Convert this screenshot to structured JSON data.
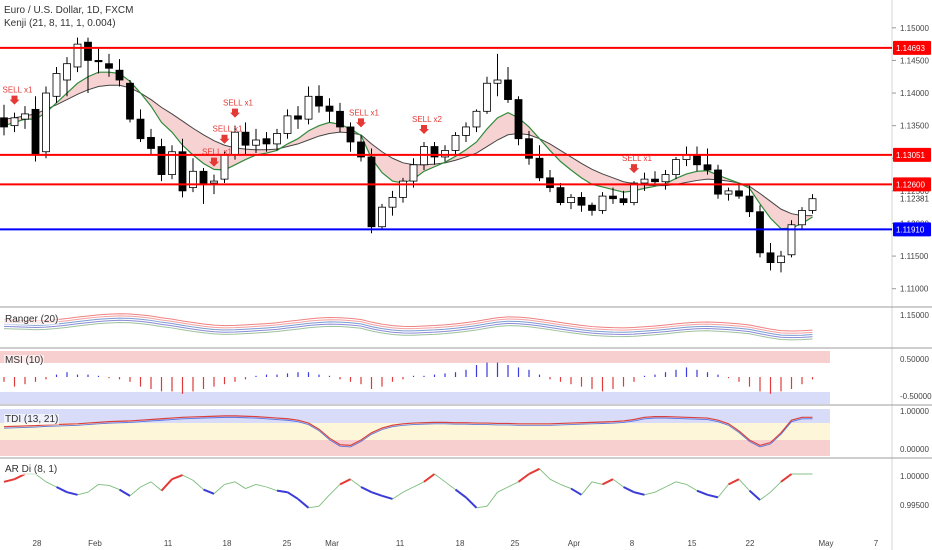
{
  "header": {
    "symbol_line": "Euro / U.S. Dollar, 1D, FXCM",
    "indicator_line": "Kenji (21, 8, 11, 1, 0.004)"
  },
  "panes": {
    "ranger": "Ranger (20)",
    "msi": "MSI (10)",
    "tdi": "TDI (13, 21)",
    "ardi": "AR Di (8, 1)"
  },
  "colors": {
    "up_candle": "#ffffff",
    "down_candle": "#000000",
    "resistance": "#ff0000",
    "support": "#0000ff",
    "kenji_fill": "#f4c7c7",
    "kenji_fast": "#2e8b3a",
    "kenji_slow": "#444444",
    "sell_signal": "#e53935"
  },
  "chart_data": {
    "type": "candlestick",
    "x_axis": {
      "tick_labels": [
        "28",
        "Feb",
        "11",
        "18",
        "25",
        "Mar",
        "11",
        "18",
        "25",
        "Apr",
        "8",
        "15",
        "22",
        "May",
        "7"
      ]
    },
    "y_axis": {
      "ylim": [
        1.1075,
        1.1535
      ],
      "tick_labels": [
        "1.15000",
        "1.14500",
        "1.14000",
        "1.13500",
        "1.13000",
        "1.12500",
        "1.12000",
        "1.11500",
        "1.11000"
      ]
    },
    "horizontal_levels": [
      {
        "label": "1.14693",
        "value": 1.14693,
        "color": "#ff0000"
      },
      {
        "label": "1.13051",
        "value": 1.13051,
        "color": "#ff0000"
      },
      {
        "label": "1.12600",
        "value": 1.126,
        "color": "#ff0000"
      },
      {
        "label": "1.11910",
        "value": 1.1191,
        "color": "#0000ff"
      }
    ],
    "last_price_label": "1.12381",
    "candles": [
      [
        1.1362,
        1.1382,
        1.1335,
        1.1348
      ],
      [
        1.135,
        1.137,
        1.134,
        1.1362
      ],
      [
        1.136,
        1.138,
        1.1345,
        1.1368
      ],
      [
        1.1375,
        1.1395,
        1.1295,
        1.1305
      ],
      [
        1.131,
        1.141,
        1.13,
        1.14
      ],
      [
        1.1395,
        1.144,
        1.1385,
        1.143
      ],
      [
        1.142,
        1.1455,
        1.1395,
        1.1445
      ],
      [
        1.144,
        1.1485,
        1.1432,
        1.1475
      ],
      [
        1.1478,
        1.1485,
        1.14,
        1.145
      ],
      [
        1.145,
        1.1468,
        1.143,
        1.1448
      ],
      [
        1.1445,
        1.146,
        1.1425,
        1.1438
      ],
      [
        1.1435,
        1.1452,
        1.141,
        1.142
      ],
      [
        1.1415,
        1.142,
        1.1355,
        1.136
      ],
      [
        1.136,
        1.1375,
        1.1325,
        1.133
      ],
      [
        1.1332,
        1.1345,
        1.1305,
        1.1315
      ],
      [
        1.1318,
        1.133,
        1.1265,
        1.1275
      ],
      [
        1.1275,
        1.132,
        1.1268,
        1.131
      ],
      [
        1.131,
        1.133,
        1.124,
        1.125
      ],
      [
        1.1255,
        1.13,
        1.1248,
        1.128
      ],
      [
        1.128,
        1.1285,
        1.123,
        1.126
      ],
      [
        1.1262,
        1.1275,
        1.1245,
        1.1265
      ],
      [
        1.1268,
        1.131,
        1.1262,
        1.1305
      ],
      [
        1.1305,
        1.135,
        1.1298,
        1.134
      ],
      [
        1.134,
        1.1355,
        1.1305,
        1.132
      ],
      [
        1.132,
        1.1345,
        1.1308,
        1.1328
      ],
      [
        1.133,
        1.134,
        1.131,
        1.1322
      ],
      [
        1.1322,
        1.1345,
        1.1312,
        1.1338
      ],
      [
        1.1338,
        1.1375,
        1.133,
        1.1365
      ],
      [
        1.1365,
        1.138,
        1.1345,
        1.136
      ],
      [
        1.136,
        1.141,
        1.1352,
        1.1395
      ],
      [
        1.1395,
        1.1412,
        1.137,
        1.138
      ],
      [
        1.138,
        1.1392,
        1.1355,
        1.1372
      ],
      [
        1.1372,
        1.1385,
        1.134,
        1.1348
      ],
      [
        1.1348,
        1.1355,
        1.131,
        1.1325
      ],
      [
        1.1325,
        1.1335,
        1.1295,
        1.1302
      ],
      [
        1.1302,
        1.1315,
        1.1185,
        1.1195
      ],
      [
        1.1195,
        1.123,
        1.119,
        1.1225
      ],
      [
        1.1225,
        1.125,
        1.1212,
        1.124
      ],
      [
        1.124,
        1.127,
        1.1232,
        1.1265
      ],
      [
        1.1265,
        1.13,
        1.1255,
        1.129
      ],
      [
        1.129,
        1.1325,
        1.1282,
        1.1318
      ],
      [
        1.1318,
        1.1325,
        1.129,
        1.1302
      ],
      [
        1.1302,
        1.132,
        1.1295,
        1.1312
      ],
      [
        1.1312,
        1.134,
        1.1305,
        1.1335
      ],
      [
        1.1335,
        1.1355,
        1.1325,
        1.1348
      ],
      [
        1.1348,
        1.1375,
        1.134,
        1.1372
      ],
      [
        1.1372,
        1.1425,
        1.1368,
        1.1415
      ],
      [
        1.1415,
        1.146,
        1.1395,
        1.142
      ],
      [
        1.142,
        1.144,
        1.1385,
        1.139
      ],
      [
        1.139,
        1.1395,
        1.132,
        1.133
      ],
      [
        1.133,
        1.1342,
        1.129,
        1.13
      ],
      [
        1.13,
        1.132,
        1.1265,
        1.127
      ],
      [
        1.127,
        1.1282,
        1.1248,
        1.1255
      ],
      [
        1.1255,
        1.1262,
        1.1228,
        1.1232
      ],
      [
        1.1232,
        1.1245,
        1.1222,
        1.124
      ],
      [
        1.124,
        1.1248,
        1.1218,
        1.1228
      ],
      [
        1.1228,
        1.1232,
        1.1212,
        1.122
      ],
      [
        1.122,
        1.1248,
        1.1215,
        1.1242
      ],
      [
        1.1242,
        1.1255,
        1.123,
        1.1238
      ],
      [
        1.1238,
        1.125,
        1.1228,
        1.1232
      ],
      [
        1.1232,
        1.1265,
        1.1228,
        1.1262
      ],
      [
        1.1262,
        1.1278,
        1.125,
        1.1268
      ],
      [
        1.1268,
        1.128,
        1.1258,
        1.1264
      ],
      [
        1.1264,
        1.1282,
        1.1252,
        1.1275
      ],
      [
        1.1275,
        1.1302,
        1.1268,
        1.1298
      ],
      [
        1.1298,
        1.1318,
        1.1288,
        1.1305
      ],
      [
        1.1305,
        1.1318,
        1.128,
        1.129
      ],
      [
        1.129,
        1.1315,
        1.1275,
        1.1282
      ],
      [
        1.1282,
        1.129,
        1.1238,
        1.1245
      ],
      [
        1.1245,
        1.1255,
        1.1235,
        1.125
      ],
      [
        1.125,
        1.1262,
        1.1238,
        1.1242
      ],
      [
        1.1242,
        1.1258,
        1.121,
        1.1218
      ],
      [
        1.1218,
        1.1228,
        1.1148,
        1.1155
      ],
      [
        1.1155,
        1.117,
        1.1128,
        1.114
      ],
      [
        1.114,
        1.1158,
        1.1125,
        1.115
      ],
      [
        1.1152,
        1.1205,
        1.1148,
        1.1198
      ],
      [
        1.1198,
        1.1225,
        1.119,
        1.122
      ],
      [
        1.122,
        1.1245,
        1.1215,
        1.1238
      ]
    ],
    "kenji_fast": [
      1.135,
      1.1355,
      1.136,
      1.136,
      1.137,
      1.1385,
      1.14,
      1.1415,
      1.1425,
      1.1432,
      1.1432,
      1.143,
      1.1418,
      1.14,
      1.138,
      1.1355,
      1.134,
      1.132,
      1.1305,
      1.1292,
      1.1283,
      1.1282,
      1.129,
      1.1298,
      1.1305,
      1.1308,
      1.1312,
      1.1322,
      1.133,
      1.1342,
      1.135,
      1.1355,
      1.1352,
      1.1345,
      1.1335,
      1.13,
      1.1278,
      1.1265,
      1.1262,
      1.1268,
      1.128,
      1.1287,
      1.1294,
      1.1303,
      1.1313,
      1.1325,
      1.1345,
      1.1362,
      1.137,
      1.1362,
      1.1348,
      1.133,
      1.1312,
      1.1295,
      1.1282,
      1.127,
      1.126,
      1.1256,
      1.1252,
      1.1248,
      1.125,
      1.1254,
      1.1257,
      1.1261,
      1.1269,
      1.1276,
      1.128,
      1.1281,
      1.1274,
      1.1268,
      1.1262,
      1.1254,
      1.123,
      1.1208,
      1.1192,
      1.1193,
      1.12,
      1.121
    ],
    "kenji_slow": [
      1.136,
      1.1362,
      1.1365,
      1.1368,
      1.1375,
      1.1382,
      1.139,
      1.1398,
      1.1405,
      1.141,
      1.1412,
      1.1412,
      1.1408,
      1.14,
      1.139,
      1.1378,
      1.1368,
      1.1357,
      1.1346,
      1.1336,
      1.1327,
      1.132,
      1.1316,
      1.1314,
      1.1313,
      1.1313,
      1.1314,
      1.1318,
      1.1322,
      1.1328,
      1.1334,
      1.1338,
      1.134,
      1.1339,
      1.1336,
      1.1322,
      1.131,
      1.13,
      1.1293,
      1.129,
      1.129,
      1.1291,
      1.1293,
      1.1297,
      1.1302,
      1.1308,
      1.1318,
      1.1328,
      1.1336,
      1.1338,
      1.1336,
      1.133,
      1.1322,
      1.1312,
      1.1302,
      1.1292,
      1.1283,
      1.1276,
      1.127,
      1.1264,
      1.1261,
      1.1259,
      1.1258,
      1.1258,
      1.126,
      1.1263,
      1.1266,
      1.1268,
      1.1267,
      1.1265,
      1.1262,
      1.1257,
      1.1246,
      1.1234,
      1.1222,
      1.1215,
      1.1212,
      1.1212
    ],
    "sell_signals": [
      {
        "label": "SELL x1",
        "candle": 1
      },
      {
        "label": "SELL x1",
        "candle": 20
      },
      {
        "label": "SELL x1",
        "candle": 21
      },
      {
        "label": "SELL x1",
        "candle": 22
      },
      {
        "label": "SELL x1",
        "candle": 34
      },
      {
        "label": "SELL x2",
        "candle": 40
      },
      {
        "label": "SELL x1",
        "candle": 60
      }
    ],
    "ranger_yaxis": [
      "1.15000"
    ],
    "msi_yaxis": [
      "0.50000",
      "-0.50000"
    ],
    "tdi_yaxis": [
      "1.00000",
      "0.00000"
    ],
    "ardi_yaxis": [
      "1.00000",
      "0.99500"
    ],
    "msi_values": [
      -0.2,
      -0.4,
      -0.3,
      -0.2,
      -0.1,
      0.1,
      0.2,
      0.1,
      0.1,
      0.05,
      -0.05,
      -0.1,
      -0.2,
      -0.4,
      -0.5,
      -0.6,
      -0.6,
      -0.7,
      -0.6,
      -0.5,
      -0.4,
      -0.3,
      -0.2,
      -0.1,
      0.05,
      0.1,
      0.1,
      0.15,
      0.2,
      0.2,
      0.1,
      0.05,
      -0.1,
      -0.2,
      -0.3,
      -0.5,
      -0.4,
      -0.2,
      -0.1,
      0.05,
      0.05,
      0.1,
      0.15,
      0.2,
      0.3,
      0.5,
      0.6,
      0.6,
      0.5,
      0.4,
      0.3,
      0.1,
      -0.1,
      -0.2,
      -0.3,
      -0.4,
      -0.5,
      -0.6,
      -0.5,
      -0.4,
      -0.2,
      0.05,
      0.1,
      0.2,
      0.3,
      0.4,
      0.3,
      0.2,
      0.1,
      -0.05,
      -0.2,
      -0.4,
      -0.6,
      -0.7,
      -0.6,
      -0.5,
      -0.3,
      -0.1
    ],
    "tdi_values": [
      0.62,
      0.63,
      0.64,
      0.65,
      0.67,
      0.68,
      0.69,
      0.7,
      0.72,
      0.74,
      0.76,
      0.77,
      0.78,
      0.8,
      0.82,
      0.84,
      0.86,
      0.88,
      0.89,
      0.9,
      0.91,
      0.92,
      0.92,
      0.91,
      0.9,
      0.88,
      0.86,
      0.84,
      0.8,
      0.72,
      0.55,
      0.3,
      0.12,
      0.1,
      0.25,
      0.45,
      0.58,
      0.66,
      0.7,
      0.72,
      0.73,
      0.74,
      0.74,
      0.73,
      0.73,
      0.72,
      0.72,
      0.71,
      0.71,
      0.7,
      0.7,
      0.7,
      0.7,
      0.71,
      0.72,
      0.73,
      0.74,
      0.75,
      0.76,
      0.78,
      0.82,
      0.88,
      0.9,
      0.9,
      0.89,
      0.88,
      0.87,
      0.86,
      0.8,
      0.7,
      0.5,
      0.25,
      0.1,
      0.18,
      0.45,
      0.8,
      0.88,
      0.88
    ],
    "ardi_values": [
      0.9995,
      1.0,
      1.001,
      1.001,
      0.9995,
      0.9985,
      0.9975,
      0.997,
      0.9975,
      0.999,
      0.9988,
      0.998,
      0.9968,
      0.9985,
      0.9995,
      0.9978,
      1.0,
      1.0008,
      0.9998,
      0.998,
      0.9972,
      0.999,
      0.9995,
      0.9982,
      0.999,
      0.9985,
      0.9978,
      0.9975,
      0.9962,
      0.9945,
      0.9948,
      0.997,
      0.999,
      1.0,
      0.9985,
      0.9975,
      0.9968,
      0.9962,
      0.9975,
      0.9985,
      0.9995,
      1.001,
      0.9995,
      0.998,
      0.9965,
      0.9945,
      0.9948,
      0.9975,
      0.9985,
      0.9995,
      1.001,
      1.002,
      1.0,
      0.999,
      0.9982,
      0.997,
      0.9995,
      0.999,
      1.0,
      0.9985,
      0.9975,
      0.997,
      0.9975,
      0.9985,
      0.9995,
      0.999,
      0.9978,
      0.997,
      0.9965,
      0.999,
      1.0,
      0.9978,
      0.996,
      0.9975,
      0.9995,
      1.001,
      1.001,
      1.001
    ]
  }
}
